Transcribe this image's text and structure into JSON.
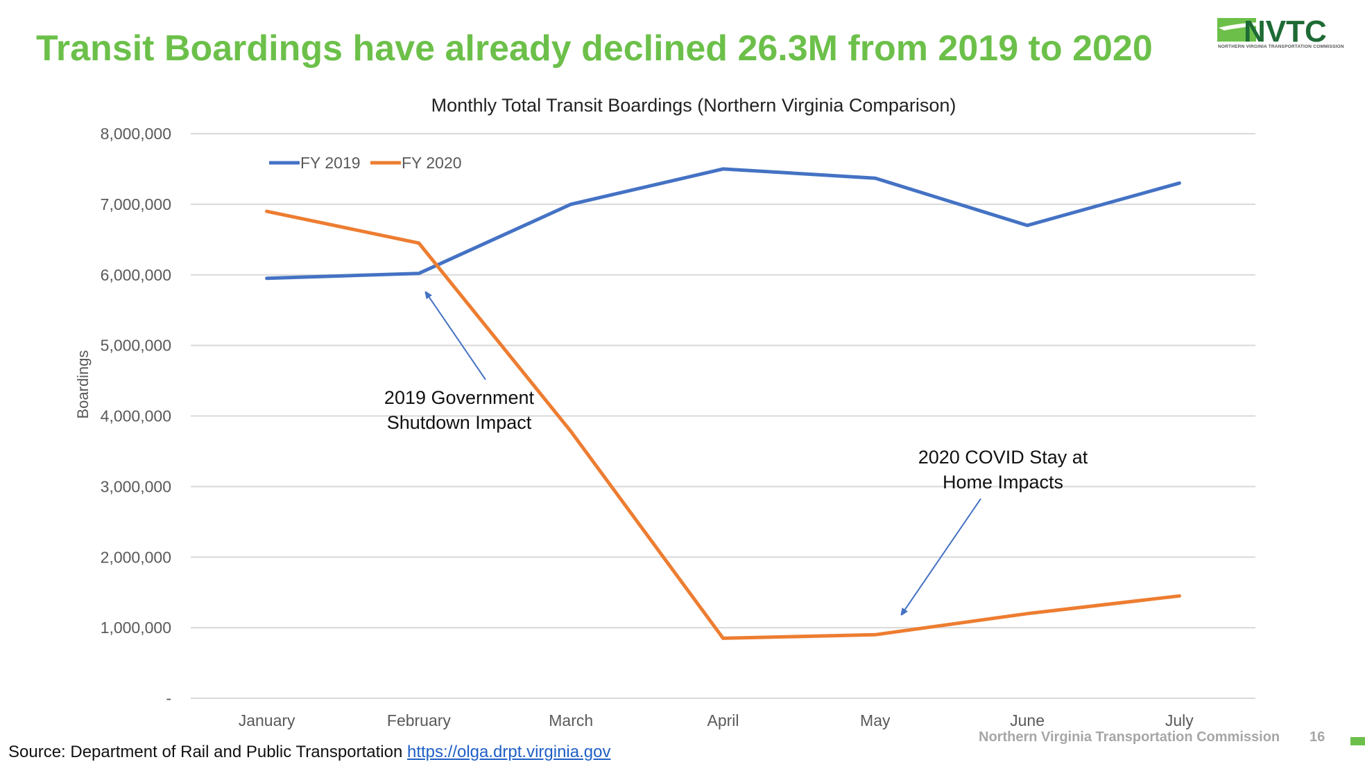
{
  "slide": {
    "headline": "Transit Boardings have already declined 26.3M from 2019 to 2020",
    "logo": {
      "text": "NVTC",
      "subtitle": "NORTHERN VIRGINIA TRANSPORTATION COMMISSION"
    },
    "source_label": "Source:  Department of Rail and Public Transportation ",
    "source_link": "https://olga.drpt.virginia.gov",
    "footer": "Northern Virginia Transportation Commission",
    "page_number": "16",
    "colors": {
      "headline_green": "#6cc04a",
      "logo_dark_green": "#1e6b35",
      "series_2019": "#4472c4",
      "series_2020": "#ed7d31",
      "annotation_arrow": "#4472c4"
    }
  },
  "chart_data": {
    "type": "line",
    "title": "Monthly Total Transit Boardings (Northern Virginia Comparison)",
    "xlabel": "",
    "ylabel": "Boardings",
    "categories": [
      "January",
      "February",
      "March",
      "April",
      "May",
      "June",
      "July"
    ],
    "ylim": [
      0,
      8000000
    ],
    "yticks": [
      0,
      1000000,
      2000000,
      3000000,
      4000000,
      5000000,
      6000000,
      7000000,
      8000000
    ],
    "ytick_labels": [
      "-",
      "1,000,000",
      "2,000,000",
      "3,000,000",
      "4,000,000",
      "5,000,000",
      "6,000,000",
      "7,000,000",
      "8,000,000"
    ],
    "grid": true,
    "legend_position": "top-left",
    "series": [
      {
        "name": "FY 2019",
        "color": "#4472c4",
        "values": [
          5950000,
          6020000,
          7000000,
          7500000,
          7370000,
          6700000,
          7300000
        ]
      },
      {
        "name": "FY 2020",
        "color": "#ed7d31",
        "values": [
          6900000,
          6450000,
          3780000,
          850000,
          900000,
          1200000,
          1450000
        ]
      }
    ],
    "annotations": [
      {
        "lines": [
          "2019 Government",
          "Shutdown Impact"
        ],
        "points_to": {
          "category": "February",
          "series": "FY 2019",
          "value": 5800000
        }
      },
      {
        "lines": [
          "2020 COVID Stay at",
          "Home Impacts"
        ],
        "points_to": {
          "category": "May",
          "series": "FY 2020",
          "value": 1150000
        }
      }
    ]
  }
}
